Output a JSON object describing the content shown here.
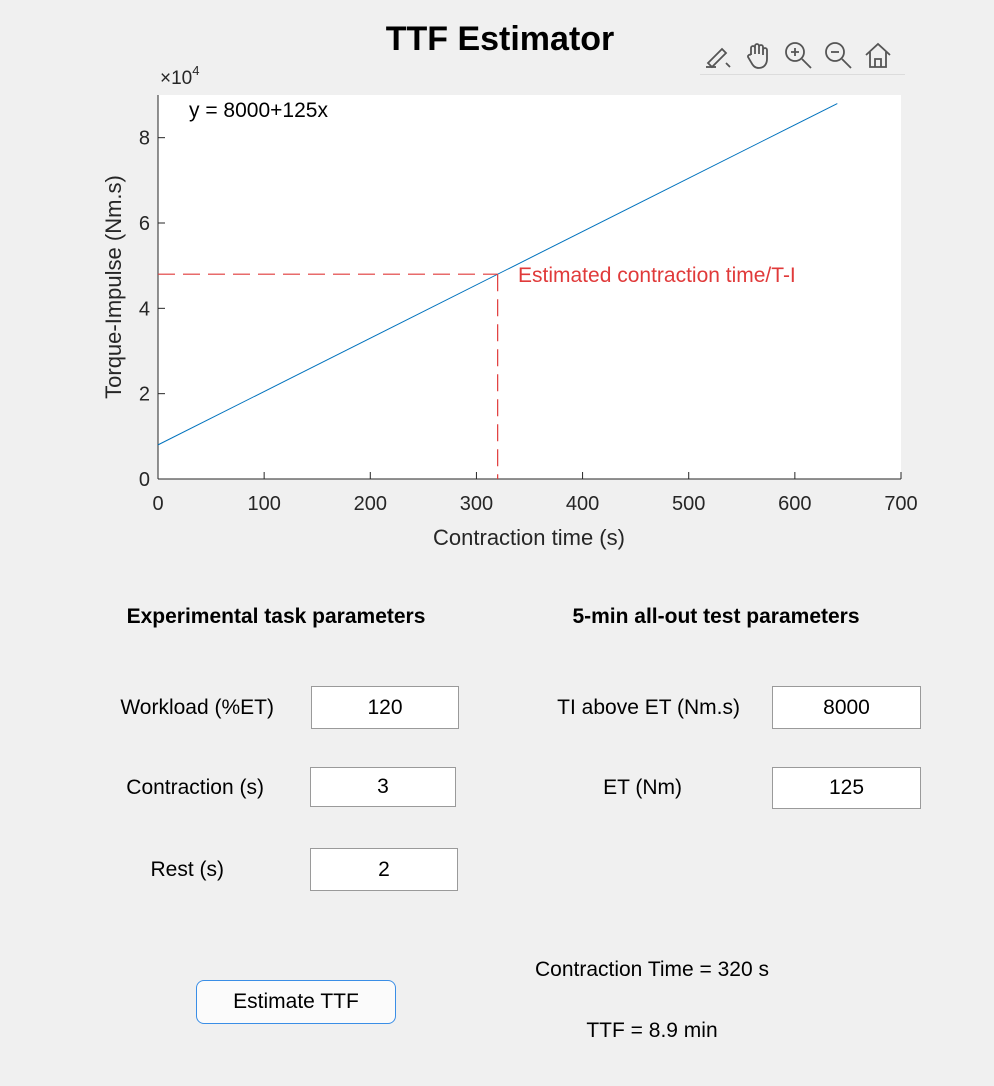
{
  "app": {
    "title": "TTF Estimator"
  },
  "toolbar": {
    "icons": [
      "brush-icon",
      "pan-hand-icon",
      "zoom-in-icon",
      "zoom-out-icon",
      "home-icon"
    ]
  },
  "chart_data": {
    "type": "line",
    "title": "TTF Estimator",
    "xlabel": "Contraction time (s)",
    "ylabel": "Torque-Impulse (Nm.s)",
    "y_exponent_label": "×10",
    "y_exponent_power": "4",
    "xlim": [
      0,
      700
    ],
    "ylim": [
      0,
      90000
    ],
    "x_ticks": [
      0,
      100,
      200,
      300,
      400,
      500,
      600,
      700
    ],
    "x_tick_labels": [
      "0",
      "100",
      "200",
      "300",
      "400",
      "500",
      "600",
      "700"
    ],
    "y_ticks": [
      0,
      20000,
      40000,
      60000,
      80000
    ],
    "y_tick_labels": [
      "0",
      "2",
      "4",
      "6",
      "8"
    ],
    "grid": false,
    "series": [
      {
        "x": [
          0,
          640
        ],
        "y": [
          8000,
          88000
        ],
        "color": "#0072BD"
      }
    ],
    "marker": {
      "x": 320,
      "y": 48000,
      "color": "#E03A3A"
    },
    "annotations": {
      "equation": "y = 8000+125x",
      "marker_label": "Estimated contraction time/T-I"
    }
  },
  "experimental": {
    "title": "Experimental task parameters",
    "workload_label": "Workload (%ET)",
    "workload_value": "120",
    "contraction_label": "Contraction (s)",
    "contraction_value": "3",
    "rest_label": "Rest (s)",
    "rest_value": "2"
  },
  "allout": {
    "title": "5-min all-out test parameters",
    "ti_label": "TI above ET (Nm.s)",
    "ti_value": "8000",
    "et_label": "ET (Nm)",
    "et_value": "125"
  },
  "actions": {
    "estimate_label": "Estimate TTF"
  },
  "results": {
    "contraction_time": "Contraction Time = 320 s",
    "ttf": "TTF = 8.9 min"
  },
  "colors": {
    "line": "#0072BD",
    "marker": "#E03A3A",
    "button_border": "#3a8ee6",
    "background": "#f0f0f0"
  }
}
